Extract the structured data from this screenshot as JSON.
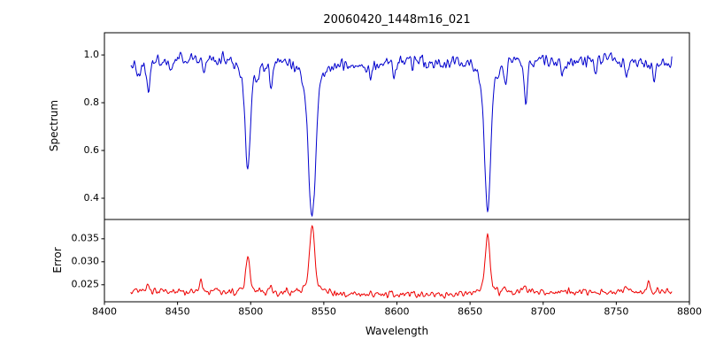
{
  "colors": {
    "background": "#ffffff",
    "frame": "#000000",
    "tick_text": "#000000",
    "spectrum_line": "#0000cd",
    "error_line": "#ee0000"
  },
  "chart_data": [
    {
      "type": "line",
      "title": "20060420_1448m16_021",
      "ylabel": "Spectrum",
      "color": "#0000cd",
      "xlim": [
        8400,
        8800
      ],
      "ylim": [
        0.311,
        1.093
      ],
      "x_range": [
        8418,
        8788
      ],
      "xticks": [
        8400,
        8450,
        8500,
        8550,
        8600,
        8650,
        8700,
        8750,
        8800
      ],
      "yticks": [
        0.4,
        0.6,
        0.8,
        1.0
      ],
      "ytick_decimals": 1,
      "continuum": 0.972,
      "noise_sigma": 0.02,
      "noise_seed": 42,
      "absorption_lines": [
        {
          "center": 8424,
          "depth": 0.08,
          "width": 0.9
        },
        {
          "center": 8430,
          "depth": 0.12,
          "width": 1.0
        },
        {
          "center": 8446,
          "depth": 0.05,
          "width": 0.8
        },
        {
          "center": 8468,
          "depth": 0.06,
          "width": 0.9
        },
        {
          "center": 8498,
          "depth": 0.46,
          "width": 1.7
        },
        {
          "center": 8505,
          "depth": 0.07,
          "width": 0.9
        },
        {
          "center": 8514,
          "depth": 0.11,
          "width": 1.0
        },
        {
          "center": 8542,
          "depth": 0.65,
          "width": 2.3
        },
        {
          "center": 8582,
          "depth": 0.05,
          "width": 0.9
        },
        {
          "center": 8598,
          "depth": 0.05,
          "width": 0.8
        },
        {
          "center": 8621,
          "depth": 0.04,
          "width": 0.8
        },
        {
          "center": 8662,
          "depth": 0.62,
          "width": 2.1
        },
        {
          "center": 8674,
          "depth": 0.1,
          "width": 0.9
        },
        {
          "center": 8688,
          "depth": 0.17,
          "width": 1.1
        },
        {
          "center": 8713,
          "depth": 0.06,
          "width": 0.9
        },
        {
          "center": 8736,
          "depth": 0.05,
          "width": 0.8
        },
        {
          "center": 8757,
          "depth": 0.06,
          "width": 0.9
        },
        {
          "center": 8776,
          "depth": 0.07,
          "width": 0.9
        }
      ]
    },
    {
      "type": "line",
      "ylabel": "Error",
      "xlabel": "Wavelength",
      "color": "#ee0000",
      "xlim": [
        8400,
        8800
      ],
      "ylim": [
        0.0213,
        0.0392
      ],
      "x_range": [
        8418,
        8788
      ],
      "xticks": [
        8400,
        8450,
        8500,
        8550,
        8600,
        8650,
        8700,
        8750,
        8800
      ],
      "yticks": [
        0.025,
        0.03,
        0.035
      ],
      "ytick_decimals": 3,
      "baseline": 0.0232,
      "noise_sigma": 0.0006,
      "peaks": [
        {
          "center": 8430,
          "amp": 0.0018,
          "width": 1.0
        },
        {
          "center": 8466,
          "amp": 0.003,
          "width": 0.9
        },
        {
          "center": 8498,
          "amp": 0.008,
          "width": 1.2
        },
        {
          "center": 8514,
          "amp": 0.0012,
          "width": 1.0
        },
        {
          "center": 8542,
          "amp": 0.015,
          "width": 1.6
        },
        {
          "center": 8662,
          "amp": 0.013,
          "width": 1.5
        },
        {
          "center": 8674,
          "amp": 0.0012,
          "width": 0.9
        },
        {
          "center": 8688,
          "amp": 0.0018,
          "width": 1.0
        },
        {
          "center": 8757,
          "amp": 0.0012,
          "width": 0.9
        },
        {
          "center": 8772,
          "amp": 0.002,
          "width": 1.0
        }
      ]
    }
  ]
}
